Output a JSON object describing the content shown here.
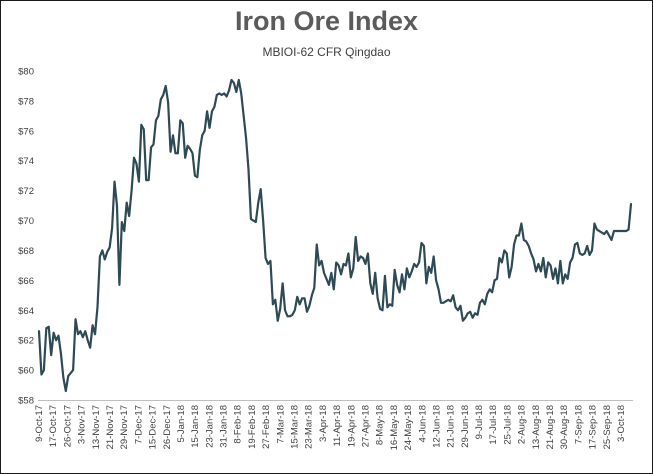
{
  "chart_data": {
    "type": "line",
    "title": "Iron Ore Index",
    "subtitle": "MBIOI-62 CFR Qingdao",
    "xlabel": "",
    "ylabel": "",
    "ylim": [
      58,
      80
    ],
    "yticks": [
      58,
      60,
      62,
      64,
      66,
      68,
      70,
      72,
      74,
      76,
      78,
      80
    ],
    "ytick_labels": [
      "$58",
      "$60",
      "$62",
      "$64",
      "$66",
      "$68",
      "$70",
      "$72",
      "$74",
      "$76",
      "$78",
      "$80"
    ],
    "xtick_labels": [
      "9-Oct-17",
      "17-Oct-17",
      "26-Oct-17",
      "3-Nov-17",
      "13-Nov-17",
      "21-Nov-17",
      "29-Nov-17",
      "7-Dec-17",
      "15-Dec-17",
      "26-Dec-17",
      "5-Jan-18",
      "15-Jan-18",
      "23-Jan-18",
      "31-Jan-18",
      "8-Feb-18",
      "19-Feb-18",
      "27-Feb-18",
      "7-Mar-18",
      "15-Mar-18",
      "23-Mar-18",
      "3-Apr-18",
      "11-Apr-18",
      "19-Apr-18",
      "27-Apr-18",
      "8-May-18",
      "16-May-18",
      "24-May-18",
      "4-Jun-18",
      "12-Jun-18",
      "21-Jun-18",
      "29-Jun-18",
      "9-Jul-18",
      "17-Jul-18",
      "25-Jul-18",
      "2-Aug-18",
      "13-Aug-18",
      "21-Aug-18",
      "30-Aug-18",
      "7-Sep-18",
      "17-Sep-18",
      "25-Sep-18",
      "3-Oct-18"
    ],
    "grid": false,
    "legend": "none",
    "series": [
      {
        "name": "MBIOI-62 CFR Qingdao",
        "color": "#2e4a55",
        "values": [
          62.6,
          59.7,
          60.0,
          62.8,
          62.9,
          61.0,
          62.5,
          62.0,
          62.3,
          61.1,
          59.5,
          58.6,
          59.6,
          59.8,
          60.0,
          63.4,
          62.4,
          62.6,
          62.2,
          62.6,
          62.0,
          61.5,
          63.0,
          62.4,
          64.2,
          67.6,
          68.0,
          67.4,
          67.9,
          68.2,
          69.5,
          72.6,
          71.0,
          65.7,
          69.9,
          69.3,
          71.2,
          70.3,
          72.0,
          74.2,
          73.8,
          72.6,
          76.4,
          76.1,
          72.7,
          72.7,
          74.9,
          75.1,
          76.7,
          77.0,
          78.1,
          78.4,
          79.0,
          77.9,
          74.6,
          75.7,
          74.5,
          74.5,
          76.7,
          76.5,
          74.2,
          75.0,
          74.8,
          74.5,
          73.0,
          72.9,
          74.7,
          75.7,
          76.0,
          77.3,
          76.2,
          77.3,
          77.6,
          78.4,
          78.5,
          78.4,
          78.5,
          78.3,
          78.7,
          79.4,
          79.2,
          78.6,
          79.4,
          78.5,
          77.0,
          75.5,
          73.4,
          70.1,
          70.0,
          69.9,
          71.2,
          72.1,
          70.0,
          67.5,
          67.1,
          67.3,
          64.4,
          64.7,
          63.3,
          64.1,
          65.8,
          64.0,
          63.6,
          63.6,
          63.7,
          64.0,
          64.9,
          64.4,
          64.8,
          64.8,
          63.9,
          64.3,
          65.0,
          65.5,
          68.4,
          67.0,
          67.3,
          66.5,
          66.1,
          65.7,
          66.5,
          65.4,
          67.2,
          67.0,
          66.4,
          67.1,
          67.0,
          67.8,
          66.2,
          66.8,
          68.9,
          67.3,
          67.6,
          67.5,
          67.1,
          67.8,
          65.8,
          65.1,
          66.5,
          64.8,
          64.1,
          64.0,
          66.3,
          64.2,
          64.4,
          64.3,
          66.7,
          65.7,
          65.2,
          66.4,
          65.4,
          66.8,
          66.2,
          66.6,
          67.1,
          66.9,
          67.2,
          68.5,
          68.3,
          65.8,
          66.9,
          66.5,
          67.6,
          66.0,
          65.4,
          64.5,
          64.5,
          64.6,
          64.7,
          64.6,
          65.0,
          64.2,
          64.0,
          64.3,
          63.3,
          63.5,
          63.8,
          63.9,
          63.5,
          63.8,
          63.7,
          64.5,
          64.7,
          64.4,
          65.1,
          65.4,
          65.2,
          66.0,
          66.1,
          67.5,
          67.2,
          68.0,
          67.8,
          66.2,
          66.9,
          68.4,
          69.0,
          69.0,
          69.8,
          68.7,
          68.6,
          68.3,
          67.8,
          67.4,
          66.6,
          67.1,
          66.6,
          67.5,
          66.2,
          67.2,
          67.0,
          66.1,
          66.8,
          65.8,
          67.3,
          65.8,
          66.4,
          66.1,
          67.2,
          67.5,
          68.4,
          68.5,
          67.8,
          67.7,
          67.8,
          68.3,
          67.7,
          68.0,
          69.8,
          69.4,
          69.3,
          69.2,
          69.1,
          69.3,
          69.0,
          68.7,
          69.3,
          69.3,
          69.3,
          69.3,
          69.3,
          69.3,
          69.4,
          71.1
        ]
      }
    ]
  }
}
